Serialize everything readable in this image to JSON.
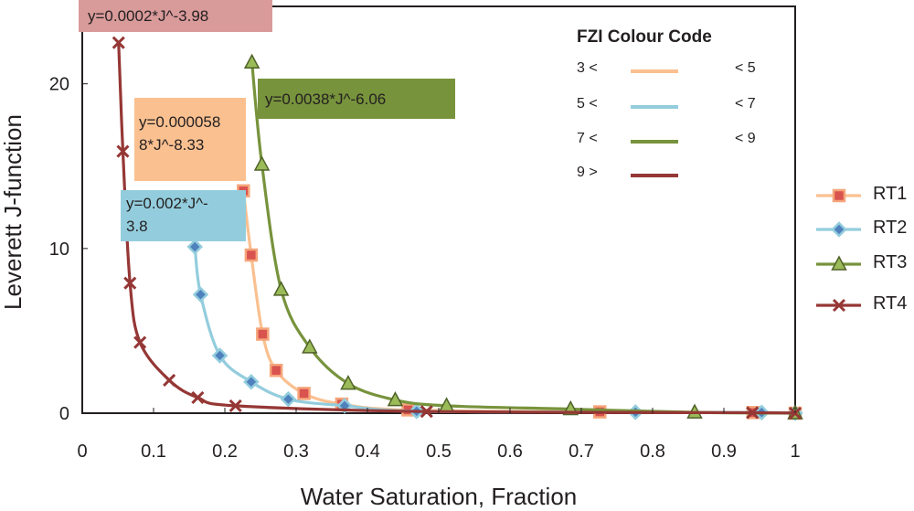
{
  "chart_data": {
    "type": "scatter",
    "title": "",
    "xlabel": "Water Saturation, Fraction",
    "ylabel": "Leverett J-function",
    "xlim": [
      0,
      1
    ],
    "ylim": [
      0,
      24.7
    ],
    "xticks": [
      "0",
      "0.1",
      "0.2",
      "0.3",
      "0.4",
      "0.5",
      "0.6",
      "0.7",
      "0.8",
      "0.9",
      "1"
    ],
    "yticks": [
      "0",
      "10",
      "20"
    ],
    "series": [
      {
        "name": "RT1",
        "color": "#fac090",
        "edge": "#f5a57a",
        "fill": "#d9534f",
        "marker": "square",
        "x": [
          0.226,
          0.237,
          0.253,
          0.272,
          0.311,
          0.364,
          0.457,
          0.726,
          0.941,
          1.0
        ],
        "y": [
          13.5,
          9.6,
          4.8,
          2.6,
          1.2,
          0.55,
          0.2,
          0.08,
          0.04,
          0.0
        ]
      },
      {
        "name": "RT2",
        "color": "#93cddd",
        "edge": "#93cddd",
        "fill": "#4f81bd",
        "marker": "diamond",
        "x": [
          0.158,
          0.166,
          0.193,
          0.237,
          0.289,
          0.368,
          0.469,
          0.776,
          0.953,
          1.0
        ],
        "y": [
          10.1,
          7.2,
          3.5,
          1.9,
          0.85,
          0.45,
          0.12,
          0.06,
          0.04,
          0.0
        ]
      },
      {
        "name": "RT3",
        "color": "#77933c",
        "edge": "#77933c",
        "fill": "#9bbb59",
        "marker": "triangle",
        "x": [
          0.238,
          0.252,
          0.279,
          0.319,
          0.373,
          0.439,
          0.511,
          0.685,
          0.859,
          1.0
        ],
        "y": [
          21.3,
          15.1,
          7.5,
          4.0,
          1.8,
          0.8,
          0.45,
          0.25,
          0.05,
          0.0
        ]
      },
      {
        "name": "RT4",
        "color": "#953735",
        "edge": "#953735",
        "fill": "#953735",
        "marker": "x",
        "x": [
          0.051,
          0.057,
          0.067,
          0.081,
          0.122,
          0.162,
          0.215,
          0.483,
          0.94,
          1.0
        ],
        "y": [
          22.5,
          15.9,
          7.9,
          4.3,
          2.0,
          0.95,
          0.45,
          0.1,
          0.03,
          0.0
        ]
      }
    ],
    "annotations": [
      {
        "series": "RT4",
        "text": "y=0.0002*J^-3.98"
      },
      {
        "series": "RT3",
        "text": "y=0.0038*J^-6.06"
      },
      {
        "series": "RT1",
        "text": "y=0.000058\n8*J^-8.33"
      },
      {
        "series": "RT2",
        "text": "y=0.002*J^-\n3.8"
      }
    ]
  },
  "fzi_legend": {
    "title": "FZI Colour Code",
    "rows": [
      {
        "low": "3 <",
        "high": "< 5",
        "color": "#fac090"
      },
      {
        "low": "5 <",
        "high": "< 7",
        "color": "#93cddd"
      },
      {
        "low": "7 <",
        "high": "< 9",
        "color": "#77933c"
      },
      {
        "low": "9 >",
        "high": "",
        "color": "#953735"
      }
    ]
  },
  "series_legend": [
    "RT1",
    "RT2",
    "RT3",
    "RT4"
  ]
}
